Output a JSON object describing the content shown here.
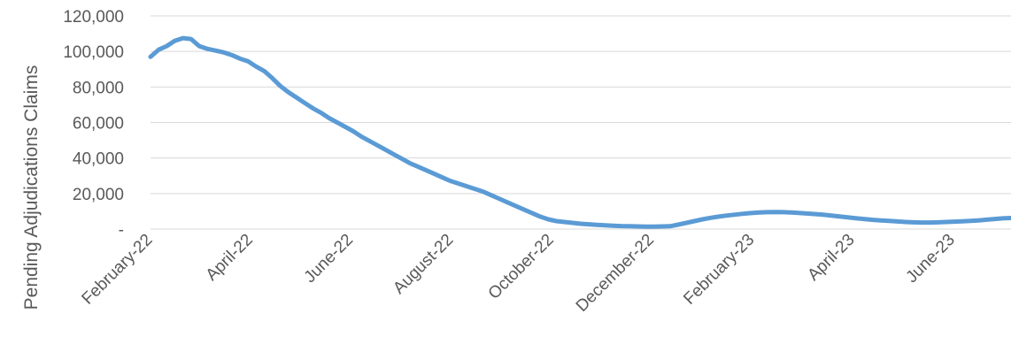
{
  "chart_data": {
    "type": "line",
    "title": "",
    "xlabel": "",
    "ylabel": "Pending Adjudications Claims",
    "ylim": [
      0,
      120000
    ],
    "y_ticks": [
      "-",
      "20,000",
      "40,000",
      "60,000",
      "80,000",
      "100,000",
      "120,000"
    ],
    "x_tick_labels": [
      "February-22",
      "April-22",
      "June-22",
      "August-22",
      "October-22",
      "December-22",
      "February-23",
      "April-23",
      "June-23"
    ],
    "grid": true,
    "legend": "none",
    "colors": {
      "series": "#5b9bd5",
      "grid": "#d9d9d9",
      "text": "#595959"
    },
    "series": [
      {
        "values": [
          97000,
          101000,
          103000,
          106000,
          107500,
          107000,
          103000,
          101500,
          100500,
          99500,
          98000,
          96000,
          94500,
          91500,
          89000,
          85000,
          80500,
          77000,
          74000,
          71000,
          68000,
          65500,
          62500,
          60000,
          57500,
          55000,
          52000,
          49500,
          47000,
          44500,
          42000,
          39500,
          37000,
          35000,
          33000,
          31000,
          29000,
          27000,
          25500,
          24000,
          22500,
          21000,
          19000,
          17000,
          15000,
          13000,
          11000,
          9000,
          7000,
          5500,
          4500,
          4000,
          3500,
          3000,
          2700,
          2400,
          2100,
          1900,
          1700,
          1600,
          1500,
          1400,
          1400,
          1500,
          1600,
          2500,
          3500,
          4500,
          5500,
          6300,
          7000,
          7600,
          8100,
          8600,
          9000,
          9300,
          9500,
          9600,
          9500,
          9300,
          9000,
          8700,
          8400,
          8000,
          7500,
          7000,
          6500,
          6000,
          5600,
          5200,
          4900,
          4600,
          4300,
          4000,
          3800,
          3700,
          3700,
          3800,
          4000,
          4200,
          4400,
          4600,
          4900,
          5300,
          5700,
          6000,
          6200
        ]
      }
    ]
  }
}
